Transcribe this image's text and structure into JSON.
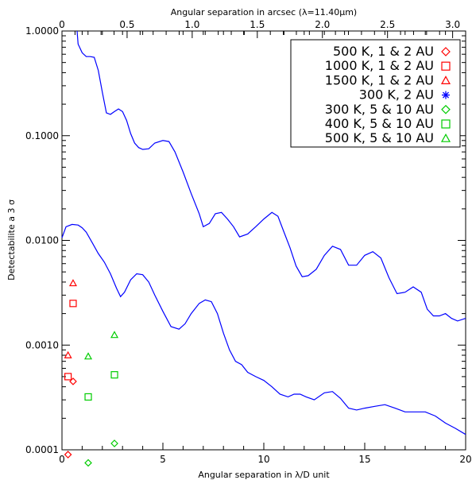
{
  "chart_data": {
    "type": "line",
    "xlabel": "Angular separation in λ/D unit",
    "x2label": "Angular separation in arcsec (λ=11.40μm)",
    "ylabel": "Detectabilite a 3 σ",
    "xlim": [
      0,
      20
    ],
    "x2lim": [
      0,
      3.1
    ],
    "ylim": [
      0.0001,
      1.0
    ],
    "yscale": "log",
    "grid": false,
    "legend_position": "top-right",
    "x_ticks": [
      0,
      5,
      10,
      15,
      20
    ],
    "x_tick_labels": [
      "0",
      "5",
      "10",
      "15",
      "20"
    ],
    "x2_ticks": [
      0,
      0.5,
      1.0,
      1.5,
      2.0,
      2.5,
      3.0
    ],
    "x2_tick_labels": [
      "0",
      "0.5",
      "1.0",
      "1.5",
      "2.0",
      "2.5",
      "3.0"
    ],
    "y_ticks": [
      0.0001,
      0.001,
      0.01,
      0.1,
      1.0
    ],
    "y_tick_labels": [
      "0.0001",
      "0.0010",
      "0.0100",
      "0.1000",
      "1.0000"
    ],
    "curve_color": "#0000ff",
    "series": [
      {
        "kind": "line",
        "color": "#0000ff",
        "x": [
          0.75,
          0.8,
          1.0,
          1.2,
          1.4,
          1.6,
          1.8,
          2.0,
          2.2,
          2.4,
          2.6,
          2.8,
          3.0,
          3.2,
          3.4,
          3.6,
          3.8,
          4.0,
          4.3,
          4.6,
          5.0,
          5.3,
          5.6,
          6.0,
          6.4,
          6.8,
          7.0,
          7.3,
          7.6,
          7.9,
          8.2,
          8.5,
          8.8,
          9.2,
          9.6,
          10.0,
          10.4,
          10.7,
          11.0,
          11.3,
          11.6,
          11.9,
          12.2,
          12.6,
          13.0,
          13.4,
          13.8,
          14.2,
          14.6,
          15.0,
          15.4,
          15.8,
          16.2,
          16.6,
          17.0,
          17.4,
          17.8,
          18.1,
          18.4,
          18.7,
          19.0,
          19.3,
          19.6,
          20.0
        ],
        "y": [
          1.0,
          0.75,
          0.62,
          0.57,
          0.57,
          0.56,
          0.42,
          0.26,
          0.165,
          0.16,
          0.17,
          0.18,
          0.17,
          0.14,
          0.105,
          0.085,
          0.077,
          0.074,
          0.075,
          0.085,
          0.09,
          0.088,
          0.07,
          0.045,
          0.028,
          0.018,
          0.0135,
          0.0145,
          0.018,
          0.0185,
          0.016,
          0.0135,
          0.0108,
          0.0115,
          0.0135,
          0.016,
          0.0185,
          0.017,
          0.012,
          0.0085,
          0.0057,
          0.0045,
          0.0046,
          0.0053,
          0.0072,
          0.0088,
          0.0082,
          0.0058,
          0.0058,
          0.0072,
          0.0078,
          0.0068,
          0.0044,
          0.0031,
          0.0032,
          0.0036,
          0.0032,
          0.0022,
          0.0019,
          0.0019,
          0.002,
          0.0018,
          0.0017,
          0.0018
        ]
      },
      {
        "kind": "line",
        "color": "#0000ff",
        "x": [
          0.0,
          0.2,
          0.5,
          0.8,
          1.0,
          1.2,
          1.5,
          1.8,
          2.1,
          2.4,
          2.7,
          2.9,
          3.1,
          3.4,
          3.7,
          4.0,
          4.3,
          4.6,
          5.0,
          5.4,
          5.8,
          6.1,
          6.4,
          6.8,
          7.1,
          7.4,
          7.7,
          8.0,
          8.3,
          8.6,
          8.9,
          9.2,
          9.6,
          10.0,
          10.4,
          10.8,
          11.2,
          11.5,
          11.8,
          12.1,
          12.5,
          13.0,
          13.4,
          13.8,
          14.2,
          14.6,
          15.0,
          15.5,
          16.0,
          16.5,
          17.0,
          17.5,
          18.0,
          18.5,
          19.0,
          19.5,
          20.0
        ],
        "y": [
          0.0106,
          0.0135,
          0.0142,
          0.014,
          0.0132,
          0.012,
          0.0095,
          0.0075,
          0.0062,
          0.0048,
          0.0035,
          0.0029,
          0.0032,
          0.0042,
          0.0048,
          0.0047,
          0.004,
          0.003,
          0.0021,
          0.0015,
          0.00142,
          0.0016,
          0.002,
          0.0025,
          0.0027,
          0.0026,
          0.002,
          0.0013,
          0.0009,
          0.0007,
          0.00065,
          0.00055,
          0.0005,
          0.00046,
          0.0004,
          0.00034,
          0.00032,
          0.00034,
          0.00034,
          0.00032,
          0.0003,
          0.00035,
          0.00036,
          0.00031,
          0.00025,
          0.00024,
          0.00025,
          0.00026,
          0.00027,
          0.00025,
          0.00023,
          0.00023,
          0.00023,
          0.00021,
          0.00018,
          0.00016,
          0.00014
        ]
      }
    ],
    "markers": [
      {
        "legend": "500 K, 1 & 2 AU",
        "shape": "diamond",
        "color": "#ff0000",
        "x": [
          0.3,
          0.55
        ],
        "y": [
          9e-05,
          0.00045
        ]
      },
      {
        "legend": "1000 K, 1 & 2 AU",
        "shape": "square",
        "color": "#ff0000",
        "x": [
          0.3,
          0.55
        ],
        "y": [
          0.0005,
          0.0025
        ]
      },
      {
        "legend": "1500 K, 1 & 2 AU",
        "shape": "triangle",
        "color": "#ff0000",
        "x": [
          0.3,
          0.55
        ],
        "y": [
          0.0008,
          0.0039
        ]
      },
      {
        "legend": "300 K, 2 AU",
        "shape": "asterisk",
        "color": "#0000ff",
        "x": [],
        "y": []
      },
      {
        "legend": "300 K, 5 & 10 AU",
        "shape": "diamond",
        "color": "#00cc00",
        "x": [
          1.3,
          2.6
        ],
        "y": [
          7.5e-05,
          0.000115
        ]
      },
      {
        "legend": "400 K, 5 & 10 AU",
        "shape": "square",
        "color": "#00cc00",
        "x": [
          1.3,
          2.6
        ],
        "y": [
          0.00032,
          0.00052
        ]
      },
      {
        "legend": "500 K, 5 & 10 AU",
        "shape": "triangle",
        "color": "#00cc00",
        "x": [
          1.3,
          2.6
        ],
        "y": [
          0.00078,
          0.00125
        ]
      }
    ]
  }
}
